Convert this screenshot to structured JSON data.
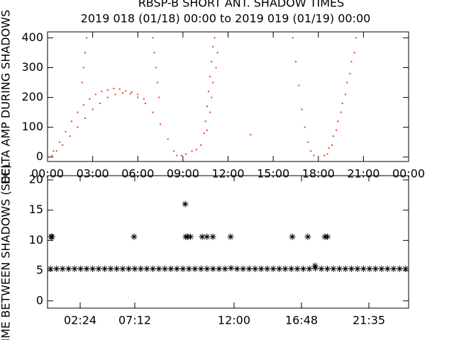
{
  "chart_data": [
    {
      "type": "scatter",
      "title": "RBSP-B SHORT ANT. SHADOW TIMES",
      "subtitle": "2019 018 (01/18) 00:00 to 2019 019 (01/19) 00:00",
      "y_label": "DELTA AMP DURING SHADOWS",
      "xlim": [
        0,
        24
      ],
      "ylim": [
        -15,
        420
      ],
      "xticks": [
        {
          "value": 0,
          "label": "00:00"
        },
        {
          "value": 3,
          "label": "03:00"
        },
        {
          "value": 6,
          "label": "06:00"
        },
        {
          "value": 9,
          "label": "09:00"
        },
        {
          "value": 12,
          "label": "12:00"
        },
        {
          "value": 15,
          "label": "15:00"
        },
        {
          "value": 18,
          "label": "18:00"
        },
        {
          "value": 21,
          "label": "21:00"
        },
        {
          "value": 24,
          "label": "00:00"
        }
      ],
      "yticks": [
        0,
        100,
        200,
        300,
        400
      ],
      "color": "#e8401c",
      "x": [
        0.3,
        0.6,
        1,
        1.5,
        2,
        2.5,
        3,
        3.5,
        4,
        4.5,
        5,
        5.5,
        6,
        6.5,
        7,
        7.5,
        8,
        8.4,
        8.6,
        0.4,
        0.8,
        1.2,
        1.6,
        2,
        2.4,
        2.8,
        3.2,
        3.6,
        4,
        4.4,
        4.8,
        5.2,
        5.6,
        6,
        6.4,
        2.3,
        2.4,
        2.5,
        2.6,
        7.0,
        7.1,
        7.2,
        7.3,
        7.4,
        8.9,
        9.2,
        9.6,
        9.9,
        10.2,
        10.4,
        10.5,
        10.6,
        10.7,
        10.8,
        10.9,
        11.0,
        11.1,
        11.3,
        11.2,
        11.0,
        10.9,
        10.8,
        10.6,
        16.3,
        16.5,
        16.7,
        16.9,
        17.1,
        17.3,
        17.5,
        17.7,
        18.4,
        18.7,
        19,
        19.3,
        19.6,
        19.9,
        20.2,
        20.5,
        18.6,
        18.9,
        19.2,
        19.5,
        19.8,
        20.1,
        20.4,
        13.5
      ],
      "values": [
        5,
        20,
        40,
        70,
        100,
        130,
        160,
        180,
        200,
        210,
        215,
        212,
        200,
        180,
        150,
        110,
        60,
        20,
        5,
        20,
        50,
        85,
        120,
        150,
        175,
        195,
        210,
        220,
        225,
        230,
        228,
        222,
        218,
        210,
        195,
        250,
        300,
        350,
        400,
        400,
        350,
        300,
        250,
        200,
        5,
        10,
        20,
        25,
        40,
        80,
        120,
        170,
        220,
        270,
        320,
        370,
        400,
        350,
        300,
        250,
        200,
        150,
        90,
        400,
        320,
        240,
        160,
        100,
        50,
        20,
        5,
        5,
        30,
        70,
        120,
        180,
        250,
        320,
        400,
        10,
        40,
        90,
        150,
        210,
        280,
        350,
        75
      ]
    },
    {
      "type": "scatter",
      "y_label": "TIME BETWEEN SHADOWS (SEC)",
      "xlim": [
        0,
        24
      ],
      "ylim": [
        -1.2,
        20.7
      ],
      "xticks": [
        {
          "value": 2.17,
          "label": "02:24"
        },
        {
          "value": 5.8,
          "label": "07:12"
        },
        {
          "value": 12.4,
          "label": "12:00"
        },
        {
          "value": 16.88,
          "label": "16:48"
        },
        {
          "value": 21.36,
          "label": "21:35"
        }
      ],
      "yticks": [
        0,
        5,
        10,
        15,
        20
      ],
      "color": "#000000",
      "x": [
        0.2,
        0.6,
        1.0,
        1.4,
        1.8,
        2.2,
        2.6,
        3.0,
        3.4,
        3.8,
        4.2,
        4.6,
        5.0,
        5.4,
        5.8,
        6.2,
        6.6,
        7.0,
        7.4,
        7.8,
        8.2,
        8.6,
        9.0,
        9.4,
        9.8,
        10.2,
        10.6,
        11.0,
        11.4,
        11.8,
        12.2,
        12.6,
        13.0,
        13.4,
        13.8,
        14.2,
        14.6,
        15.0,
        15.4,
        15.8,
        16.2,
        16.6,
        17.0,
        17.4,
        17.8,
        18.2,
        18.6,
        19.0,
        19.4,
        19.8,
        20.2,
        20.6,
        21.0,
        21.4,
        21.8,
        22.2,
        22.6,
        23.0,
        23.4,
        23.8,
        0.24,
        0.3,
        5.75,
        9.19,
        9.3,
        9.5,
        10.28,
        10.6,
        10.99,
        12.17,
        16.27,
        17.3,
        18.44,
        18.6,
        9.15,
        17.78
      ],
      "values": [
        5.3,
        5.3,
        5.3,
        5.3,
        5.3,
        5.3,
        5.3,
        5.3,
        5.3,
        5.3,
        5.3,
        5.3,
        5.3,
        5.3,
        5.3,
        5.3,
        5.3,
        5.3,
        5.3,
        5.3,
        5.3,
        5.3,
        5.3,
        5.3,
        5.3,
        5.3,
        5.3,
        5.3,
        5.3,
        5.3,
        5.4,
        5.3,
        5.3,
        5.3,
        5.3,
        5.3,
        5.3,
        5.3,
        5.3,
        5.3,
        5.3,
        5.3,
        5.3,
        5.3,
        5.4,
        5.3,
        5.3,
        5.3,
        5.3,
        5.3,
        5.3,
        5.3,
        5.3,
        5.3,
        5.3,
        5.3,
        5.3,
        5.3,
        5.3,
        5.3,
        10.6,
        10.6,
        10.6,
        10.6,
        10.6,
        10.6,
        10.6,
        10.6,
        10.6,
        10.6,
        10.6,
        10.6,
        10.6,
        10.6,
        16,
        5.8
      ]
    }
  ]
}
